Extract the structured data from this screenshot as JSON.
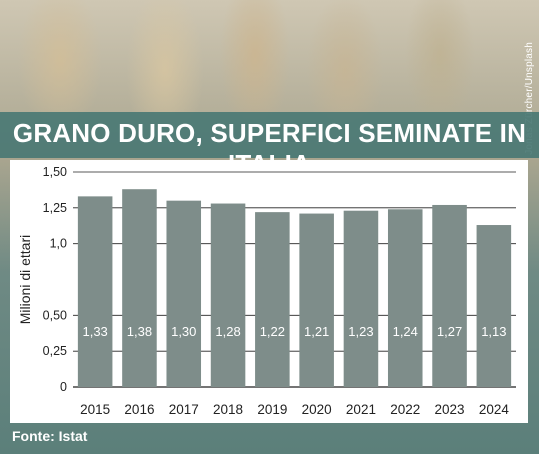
{
  "title": "GRANO DURO, SUPERFICI SEMINATE IN ITALIA",
  "photo_credit": "Jonas Zürcher/Unsplash",
  "source": "Fonte: Istat",
  "colors": {
    "bar": "#7e8d8a",
    "band": "#4a7874",
    "background": "#5b7f7a"
  },
  "chart_data": {
    "type": "bar",
    "title": "GRANO DURO, SUPERFICI SEMINATE IN ITALIA",
    "xlabel": "",
    "ylabel": "Milioni di ettari",
    "categories": [
      "2015",
      "2016",
      "2017",
      "2018",
      "2019",
      "2020",
      "2021",
      "2022",
      "2023",
      "2024"
    ],
    "values": [
      1.33,
      1.38,
      1.3,
      1.28,
      1.22,
      1.21,
      1.23,
      1.24,
      1.27,
      1.13
    ],
    "value_labels": [
      "1,33",
      "1,38",
      "1,30",
      "1,28",
      "1,22",
      "1,21",
      "1,23",
      "1,24",
      "1,27",
      "1,13"
    ],
    "ylim": [
      0,
      1.5
    ],
    "yticks": [
      0,
      0.25,
      0.5,
      1.0,
      1.25,
      1.5
    ],
    "ytick_labels": [
      "0",
      "0,25",
      "0,50",
      "1,0",
      "1,25",
      "1,50"
    ],
    "grid": true,
    "legend": "none"
  }
}
